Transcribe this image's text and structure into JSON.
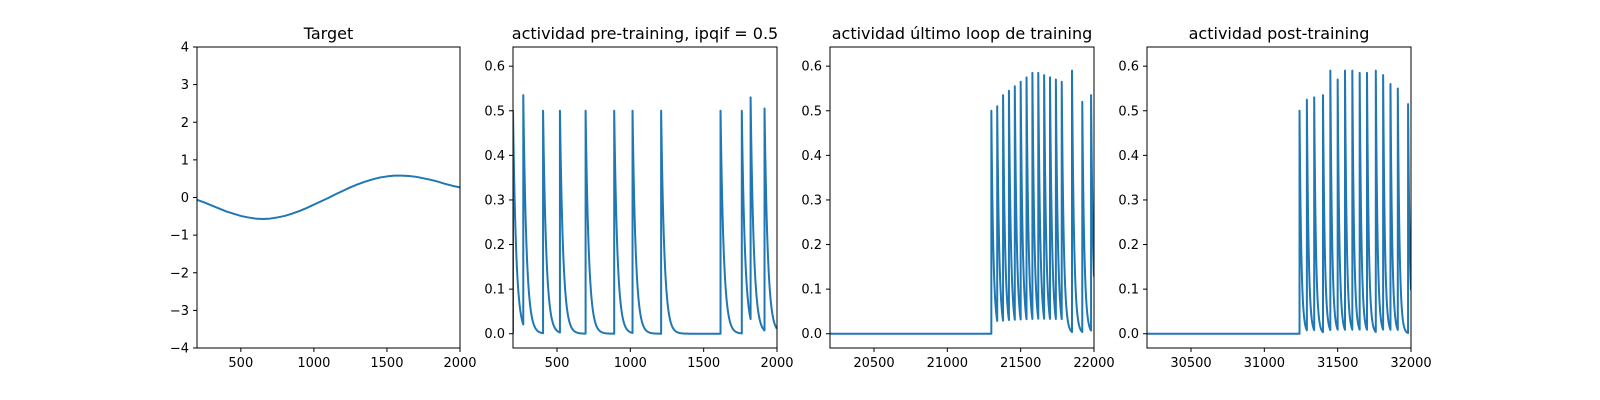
{
  "figure": {
    "line_color": "#1f77b4"
  },
  "chart_data": [
    {
      "type": "line",
      "title": "Target",
      "xlabel": "",
      "ylabel": "",
      "xlim": [
        200,
        2000
      ],
      "ylim": [
        -4,
        4
      ],
      "xticks": [
        500,
        1000,
        1500,
        2000
      ],
      "yticks": [
        -4,
        -3,
        -2,
        -1,
        0,
        1,
        2,
        3,
        4
      ],
      "grid": false,
      "series": [
        {
          "x": [
            200,
            250,
            300,
            350,
            400,
            450,
            500,
            550,
            600,
            650,
            700,
            750,
            800,
            850,
            900,
            950,
            1000,
            1050,
            1100,
            1150,
            1200,
            1250,
            1300,
            1350,
            1400,
            1450,
            1500,
            1550,
            1600,
            1650,
            1700,
            1750,
            1800,
            1850,
            1900,
            1950,
            2000
          ],
          "y": [
            -0.06,
            -0.13,
            -0.21,
            -0.29,
            -0.37,
            -0.43,
            -0.49,
            -0.53,
            -0.56,
            -0.57,
            -0.56,
            -0.53,
            -0.49,
            -0.43,
            -0.36,
            -0.28,
            -0.19,
            -0.1,
            -0.01,
            0.09,
            0.18,
            0.27,
            0.35,
            0.42,
            0.48,
            0.53,
            0.56,
            0.58,
            0.58,
            0.57,
            0.55,
            0.51,
            0.47,
            0.42,
            0.36,
            0.31,
            0.27
          ]
        }
      ]
    },
    {
      "type": "line",
      "title": "actividad pre-training, ipqif = 0.5",
      "xlabel": "",
      "ylabel": "",
      "xlim": [
        200,
        2000
      ],
      "ylim": [
        -0.032,
        0.643
      ],
      "xticks": [
        500,
        1000,
        1500,
        2000
      ],
      "yticks": [
        0.0,
        0.1,
        0.2,
        0.3,
        0.4,
        0.5,
        0.6
      ],
      "grid": false,
      "series": [
        {
          "spikes": [
            {
              "t": 200,
              "peak": 0.5
            },
            {
              "t": 270,
              "peak": 0.535
            },
            {
              "t": 405,
              "peak": 0.5
            },
            {
              "t": 520,
              "peak": 0.5
            },
            {
              "t": 695,
              "peak": 0.5
            },
            {
              "t": 890,
              "peak": 0.5
            },
            {
              "t": 1015,
              "peak": 0.5
            },
            {
              "t": 1210,
              "peak": 0.5
            },
            {
              "t": 1615,
              "peak": 0.5
            },
            {
              "t": 1760,
              "peak": 0.5
            },
            {
              "t": 1820,
              "peak": 0.53
            },
            {
              "t": 1915,
              "peak": 0.505
            }
          ],
          "decay_tau": 22,
          "baseline": 0.0
        }
      ]
    },
    {
      "type": "line",
      "title": "actividad último loop de training",
      "xlabel": "",
      "ylabel": "",
      "xlim": [
        20200,
        22000
      ],
      "ylim": [
        -0.032,
        0.643
      ],
      "xticks": [
        20500,
        21000,
        21500,
        22000
      ],
      "yticks": [
        0.0,
        0.1,
        0.2,
        0.3,
        0.4,
        0.5,
        0.6
      ],
      "grid": false,
      "series": [
        {
          "spikes": [
            {
              "t": 21300,
              "peak": 0.5
            },
            {
              "t": 21340,
              "peak": 0.51
            },
            {
              "t": 21380,
              "peak": 0.535
            },
            {
              "t": 21420,
              "peak": 0.545
            },
            {
              "t": 21460,
              "peak": 0.555
            },
            {
              "t": 21500,
              "peak": 0.565
            },
            {
              "t": 21540,
              "peak": 0.575
            },
            {
              "t": 21580,
              "peak": 0.585
            },
            {
              "t": 21620,
              "peak": 0.585
            },
            {
              "t": 21660,
              "peak": 0.58
            },
            {
              "t": 21700,
              "peak": 0.575
            },
            {
              "t": 21740,
              "peak": 0.57
            },
            {
              "t": 21780,
              "peak": 0.565
            },
            {
              "t": 21850,
              "peak": 0.59
            },
            {
              "t": 21920,
              "peak": 0.52
            },
            {
              "t": 21980,
              "peak": 0.535
            }
          ],
          "decay_tau": 14,
          "baseline": 0.0
        }
      ]
    },
    {
      "type": "line",
      "title": "actividad post-training",
      "xlabel": "",
      "ylabel": "",
      "xlim": [
        30200,
        32000
      ],
      "ylim": [
        -0.032,
        0.643
      ],
      "xticks": [
        30500,
        31000,
        31500,
        32000
      ],
      "yticks": [
        0.0,
        0.1,
        0.2,
        0.3,
        0.4,
        0.5,
        0.6
      ],
      "grid": false,
      "series": [
        {
          "spikes": [
            {
              "t": 31240,
              "peak": 0.5
            },
            {
              "t": 31290,
              "peak": 0.525
            },
            {
              "t": 31340,
              "peak": 0.53
            },
            {
              "t": 31400,
              "peak": 0.535
            },
            {
              "t": 31450,
              "peak": 0.59
            },
            {
              "t": 31500,
              "peak": 0.57
            },
            {
              "t": 31550,
              "peak": 0.59
            },
            {
              "t": 31600,
              "peak": 0.59
            },
            {
              "t": 31650,
              "peak": 0.585
            },
            {
              "t": 31700,
              "peak": 0.585
            },
            {
              "t": 31760,
              "peak": 0.59
            },
            {
              "t": 31810,
              "peak": 0.58
            },
            {
              "t": 31860,
              "peak": 0.56
            },
            {
              "t": 31910,
              "peak": 0.55
            },
            {
              "t": 31980,
              "peak": 0.515
            }
          ],
          "decay_tau": 12,
          "baseline": 0.0
        }
      ]
    }
  ]
}
